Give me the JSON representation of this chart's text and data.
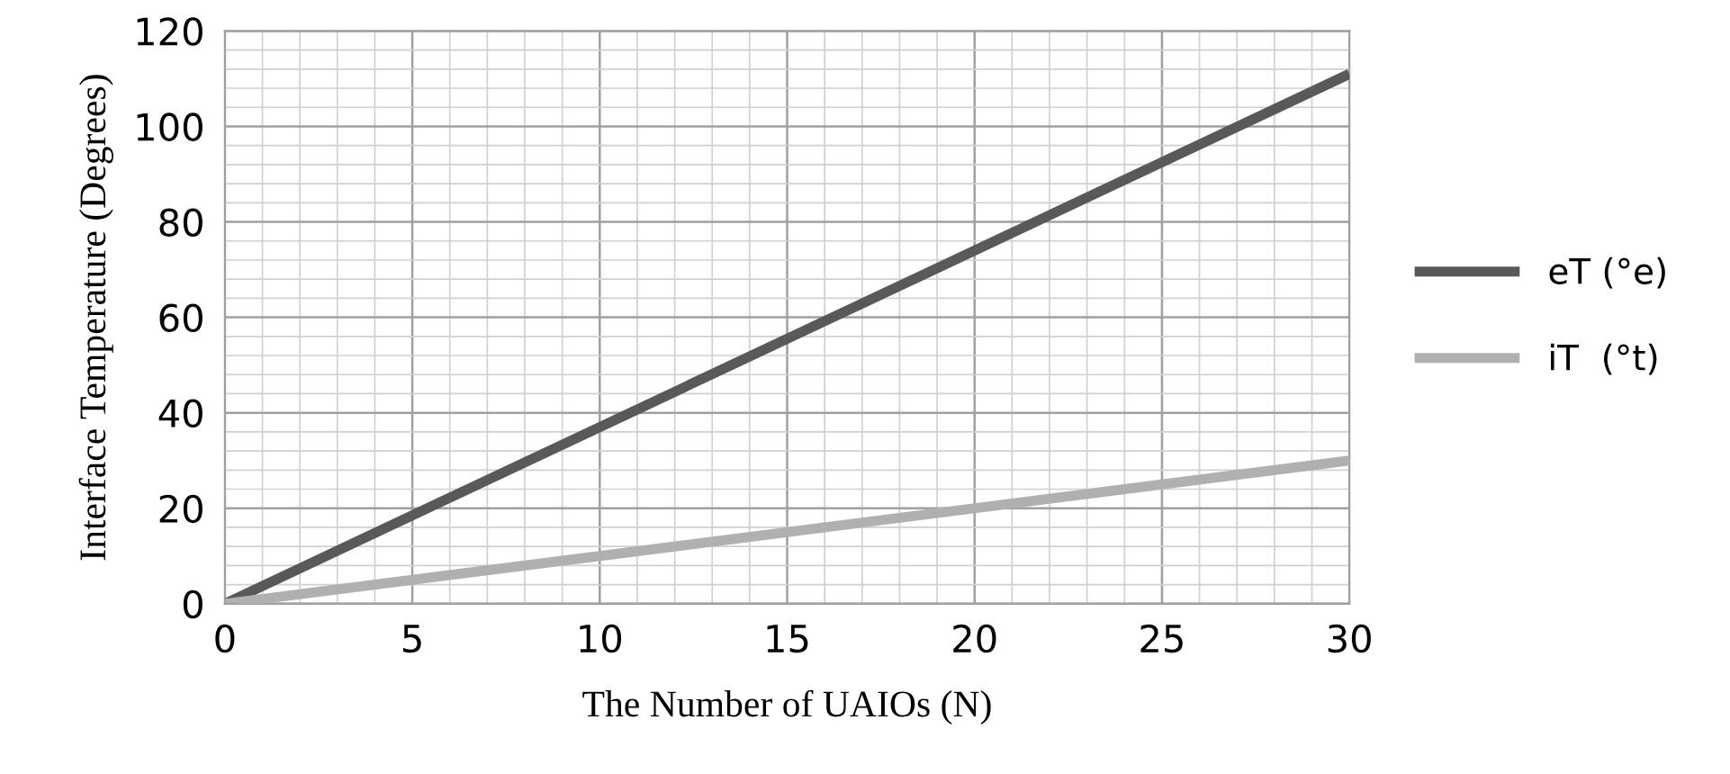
{
  "chart_data": {
    "type": "line",
    "xlabel": "The Number of UAIOs (N)",
    "ylabel": "Interface Temperature (Degrees)",
    "x": [
      0,
      30
    ],
    "series": [
      {
        "name": "eT (°e)",
        "color": "#595959",
        "values": [
          0,
          111
        ]
      },
      {
        "name": "iT  (°t)",
        "color": "#b0b0b0",
        "values": [
          0,
          30
        ]
      }
    ],
    "xlim": [
      0,
      30
    ],
    "xticks": [
      0,
      5,
      10,
      15,
      20,
      25,
      30
    ],
    "ylim": [
      0,
      120
    ],
    "yticks": [
      0,
      20,
      40,
      60,
      80,
      100,
      120
    ],
    "grid": true,
    "legend": "right",
    "marker": "none",
    "line_style": "solid"
  }
}
